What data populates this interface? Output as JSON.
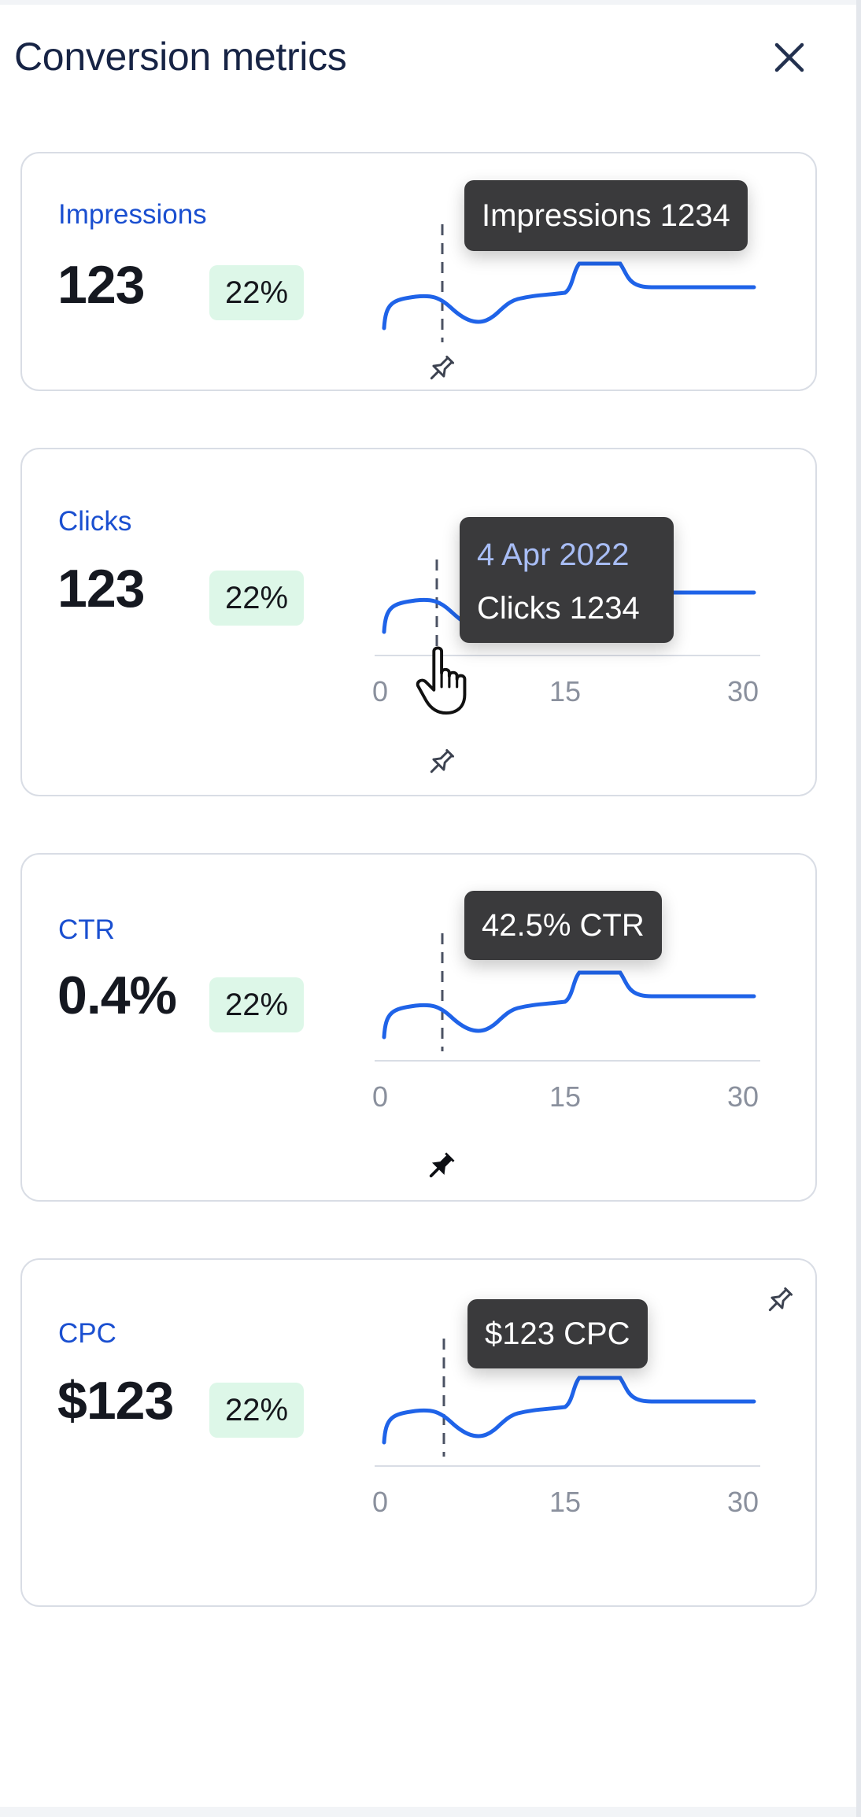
{
  "panel": {
    "title": "Conversion metrics"
  },
  "icons": {
    "close": "close-icon",
    "pin": "pin-icon",
    "pin_filled": "pin-filled-icon",
    "cursor": "hand-cursor-icon"
  },
  "colors": {
    "accent": "#1a4fd0",
    "line": "#1f63e8",
    "badge_bg": "#ddf7e8",
    "tooltip_bg": "#3a3a3c"
  },
  "cards": [
    {
      "label": "Impressions",
      "value": "123",
      "change": "22%",
      "tooltip": {
        "text": "Impressions 1234"
      },
      "pinned": false,
      "axis": null
    },
    {
      "label": "Clicks",
      "value": "123",
      "change": "22%",
      "tooltip": {
        "date": "4 Apr 2022",
        "text": "Clicks 1234"
      },
      "pinned": false,
      "axis": {
        "ticks": [
          "0",
          "15",
          "30"
        ]
      }
    },
    {
      "label": "CTR",
      "value": "0.4%",
      "change": "22%",
      "tooltip": {
        "text": "42.5% CTR"
      },
      "pinned": true,
      "axis": {
        "ticks": [
          "0",
          "15",
          "30"
        ]
      }
    },
    {
      "label": "CPC",
      "value": "$123",
      "change": "22%",
      "tooltip": {
        "text": "$123 CPC"
      },
      "pinned": false,
      "axis": {
        "ticks": [
          "0",
          "15",
          "30"
        ]
      }
    }
  ]
}
